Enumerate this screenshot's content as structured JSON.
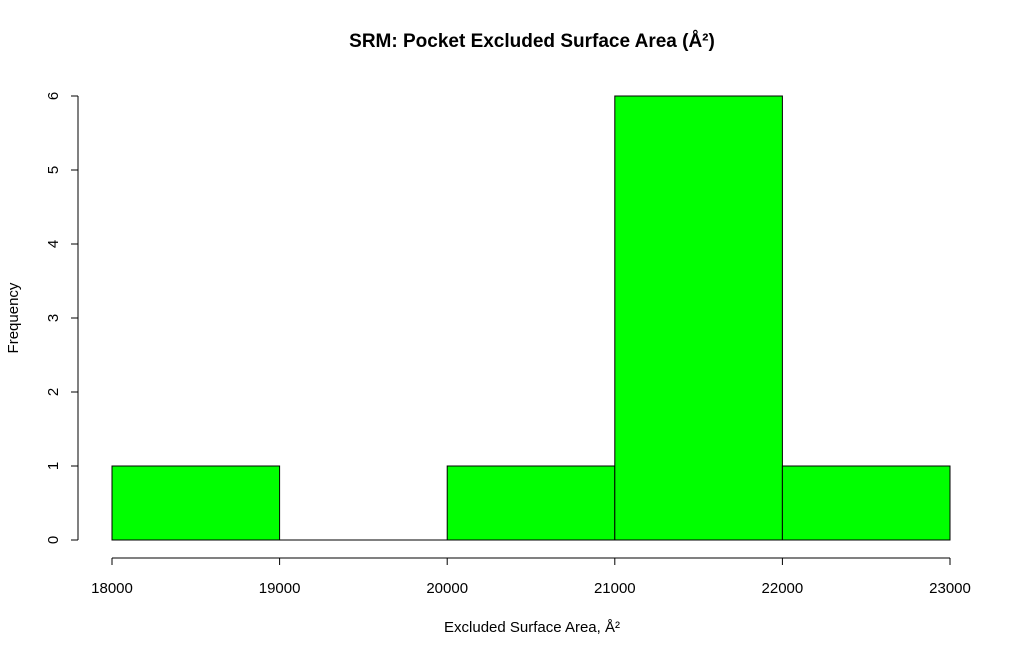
{
  "chart_data": {
    "type": "bar",
    "title": "SRM: Pocket Excluded Surface Area (Å²)",
    "xlabel": "Excluded Surface Area, Å²",
    "ylabel": "Frequency",
    "bins": [
      {
        "x0": 18000,
        "x1": 19000,
        "count": 1
      },
      {
        "x0": 19000,
        "x1": 20000,
        "count": 0
      },
      {
        "x0": 20000,
        "x1": 21000,
        "count": 1
      },
      {
        "x0": 21000,
        "x1": 22000,
        "count": 6
      },
      {
        "x0": 22000,
        "x1": 23000,
        "count": 1
      }
    ],
    "xticks": [
      18000,
      19000,
      20000,
      21000,
      22000,
      23000
    ],
    "yticks": [
      0,
      1,
      2,
      3,
      4,
      5,
      6
    ],
    "xlim": [
      18000,
      23000
    ],
    "ylim": [
      0,
      6
    ],
    "grid": false,
    "bar_color": "#00ff00",
    "edge_color": "#000000"
  }
}
